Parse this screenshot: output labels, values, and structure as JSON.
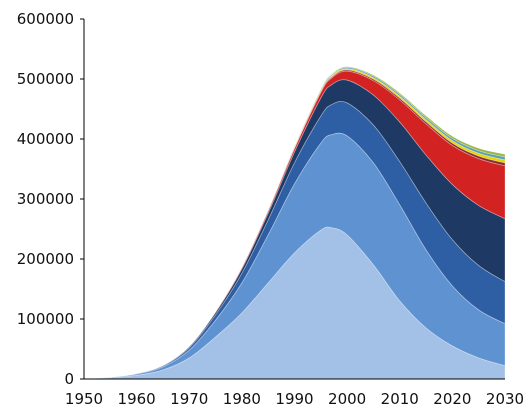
{
  "chart_data": {
    "type": "area",
    "stacked": true,
    "title": "",
    "xlabel": "",
    "ylabel": "",
    "xlim": [
      1950,
      2030
    ],
    "ylim": [
      0,
      600000
    ],
    "grid": false,
    "legend": "none",
    "x_ticks": [
      "1950",
      "1960",
      "1970",
      "1980",
      "1990",
      "2000",
      "2010",
      "2020",
      "2030"
    ],
    "y_ticks": [
      "0",
      "100000",
      "200000",
      "300000",
      "400000",
      "500000",
      "600000"
    ],
    "x": [
      1950,
      1955,
      1960,
      1965,
      1970,
      1975,
      1980,
      1985,
      1990,
      1995,
      1997,
      2000,
      2005,
      2010,
      2015,
      2020,
      2025,
      2030
    ],
    "series": [
      {
        "color": "#a3c0e6",
        "values": [
          0,
          2000,
          6000,
          15000,
          35000,
          70000,
          110000,
          160000,
          210000,
          248000,
          252000,
          240000,
          190000,
          130000,
          85000,
          55000,
          35000,
          22000
        ]
      },
      {
        "color": "#5f92d0",
        "values": [
          0,
          500,
          2000,
          5000,
          13000,
          28000,
          50000,
          80000,
          115000,
          145000,
          155000,
          165000,
          170000,
          160000,
          130000,
          100000,
          80000,
          70000
        ]
      },
      {
        "color": "#2e5ea3",
        "values": [
          0,
          0,
          500,
          1500,
          4000,
          9000,
          16000,
          25000,
          35000,
          45000,
          50000,
          55000,
          63000,
          72000,
          78000,
          77000,
          74000,
          70000
        ]
      },
      {
        "color": "#1d3964",
        "values": [
          0,
          0,
          0,
          500,
          1500,
          3500,
          7000,
          11000,
          18000,
          30000,
          33000,
          38000,
          50000,
          66000,
          80000,
          92000,
          100000,
          105000
        ]
      },
      {
        "color": "#d22222",
        "values": [
          0,
          0,
          0,
          0,
          500,
          1000,
          2000,
          3500,
          5500,
          9000,
          11000,
          15000,
          24000,
          37000,
          52000,
          65000,
          78000,
          88000
        ]
      },
      {
        "color": "#8c2e2e",
        "values": [
          0,
          0,
          0,
          0,
          0,
          0,
          300,
          600,
          1000,
          1500,
          1700,
          2000,
          2500,
          3000,
          3500,
          4000,
          4500,
          5000
        ]
      },
      {
        "color": "#e8d400",
        "values": [
          0,
          0,
          0,
          0,
          0,
          0,
          300,
          600,
          1000,
          1500,
          1700,
          2000,
          2500,
          3000,
          3500,
          4000,
          4500,
          5000
        ]
      },
      {
        "color": "#58a0b6",
        "values": [
          0,
          0,
          0,
          0,
          0,
          0,
          300,
          600,
          1000,
          1500,
          1700,
          2000,
          2500,
          3000,
          3500,
          4000,
          4500,
          5000
        ]
      },
      {
        "color": "#9ab53c",
        "values": [
          0,
          0,
          0,
          0,
          0,
          0,
          200,
          400,
          700,
          1000,
          1200,
          1500,
          2000,
          2500,
          3000,
          3500,
          4000,
          4500
        ]
      }
    ]
  }
}
